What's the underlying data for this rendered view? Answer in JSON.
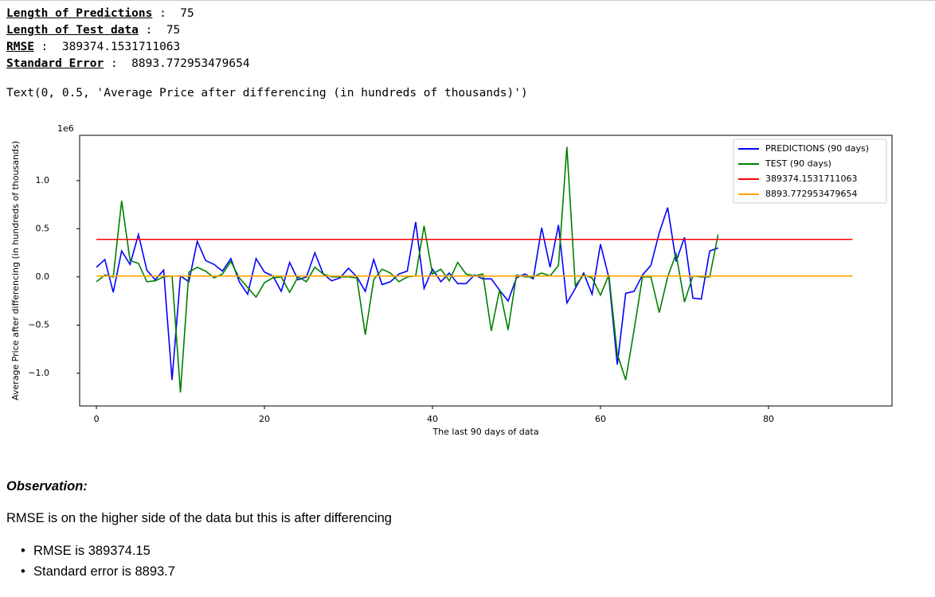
{
  "output": {
    "separator": ":",
    "lines": [
      {
        "label": "Length of Predictions",
        "value": "75"
      },
      {
        "label": "Length of Test data",
        "value": "75"
      },
      {
        "label": "RMSE",
        "value": "389374.1531711063"
      },
      {
        "label": "Standard Error",
        "value": "8893.772953479654"
      }
    ],
    "repr": "Text(0, 0.5, 'Average Price after differencing (in hundreds of thousands)')"
  },
  "chart_data": {
    "type": "line",
    "x_label": "The last 90 days of data",
    "y_label": "Average Price after differencing (in hundreds of thousands)",
    "y_offset_label": "1e6",
    "x": [
      0,
      1,
      2,
      3,
      4,
      5,
      6,
      7,
      8,
      9,
      10,
      11,
      12,
      13,
      14,
      15,
      16,
      17,
      18,
      19,
      20,
      21,
      22,
      23,
      24,
      25,
      26,
      27,
      28,
      29,
      30,
      31,
      32,
      33,
      34,
      35,
      36,
      37,
      38,
      39,
      40,
      41,
      42,
      43,
      44,
      45,
      46,
      47,
      48,
      49,
      50,
      51,
      52,
      53,
      54,
      55,
      56,
      57,
      58,
      59,
      60,
      61,
      62,
      63,
      64,
      65,
      66,
      67,
      68,
      69,
      70,
      71,
      72,
      73,
      74
    ],
    "xlim": [
      -2,
      94.7
    ],
    "xticks": [
      0,
      20,
      40,
      60,
      80
    ],
    "ylim": [
      -1.34,
      1.47
    ],
    "yticks": [
      {
        "value": -1,
        "label": "−1.0"
      },
      {
        "value": -0.5,
        "label": "−0.5"
      },
      {
        "value": 0,
        "label": "0.0"
      },
      0.5,
      {
        "value": 1,
        "label": "1.0"
      }
    ],
    "legend": "upper right",
    "series": [
      {
        "name": "PREDICTIONS (90 days)",
        "color": "#0000ff",
        "values": [
          0.1,
          0.18,
          -0.16,
          0.27,
          0.13,
          0.44,
          0.07,
          -0.03,
          0.07,
          -1.07,
          0.01,
          -0.05,
          0.37,
          0.17,
          0.13,
          0.06,
          0.19,
          -0.05,
          -0.18,
          0.19,
          0.05,
          0.01,
          -0.15,
          0.15,
          -0.03,
          0.0,
          0.25,
          0.03,
          -0.04,
          -0.01,
          0.09,
          0.0,
          -0.15,
          0.18,
          -0.08,
          -0.05,
          0.03,
          0.06,
          0.57,
          -0.12,
          0.08,
          -0.05,
          0.04,
          -0.07,
          -0.07,
          0.02,
          -0.02,
          -0.02,
          -0.14,
          -0.25,
          -0.01,
          0.03,
          -0.02,
          0.51,
          0.1,
          0.54,
          -0.27,
          -0.12,
          0.04,
          -0.18,
          0.34,
          -0.01,
          -0.91,
          -0.17,
          -0.15,
          0.02,
          0.12,
          0.46,
          0.72,
          0.16,
          0.41,
          -0.22,
          -0.23,
          0.27,
          0.3
        ]
      },
      {
        "name": "TEST (90 days)",
        "color": "#008000",
        "values": [
          -0.05,
          0.02,
          0.0,
          0.79,
          0.17,
          0.14,
          -0.05,
          -0.04,
          0.0,
          0.01,
          -1.2,
          0.05,
          0.1,
          0.06,
          -0.01,
          0.03,
          0.16,
          -0.01,
          -0.11,
          -0.21,
          -0.06,
          -0.01,
          0.0,
          -0.16,
          0.0,
          -0.05,
          0.1,
          0.03,
          0.0,
          0.0,
          0.0,
          -0.01,
          -0.6,
          -0.03,
          0.08,
          0.04,
          -0.05,
          0.0,
          0.01,
          0.53,
          0.03,
          0.08,
          -0.04,
          0.15,
          0.03,
          0.01,
          0.03,
          -0.56,
          -0.13,
          -0.55,
          0.02,
          0.0,
          0.0,
          0.04,
          0.01,
          0.12,
          1.35,
          -0.09,
          0.02,
          -0.01,
          -0.19,
          0.02,
          -0.8,
          -1.07,
          -0.55,
          0.0,
          0.0,
          -0.37,
          0.0,
          0.24,
          -0.26,
          0.01,
          0.0,
          0.0,
          0.44
        ]
      },
      {
        "name": "389374.1531711063",
        "color": "#ff0000",
        "x": [
          0,
          90
        ],
        "values": [
          0.3893741531711063,
          0.3893741531711063
        ]
      },
      {
        "name": "8893.772953479654",
        "color": "#ffa500",
        "x": [
          0,
          90
        ],
        "values": [
          0.008893772953479654,
          0.008893772953479654
        ]
      }
    ]
  },
  "markdown": {
    "heading": "Observation:",
    "paragraph": "RMSE is on the higher side of the data but this is after differencing",
    "bullets": [
      "RMSE is 389374.15",
      "Standard error is 8893.7"
    ]
  }
}
